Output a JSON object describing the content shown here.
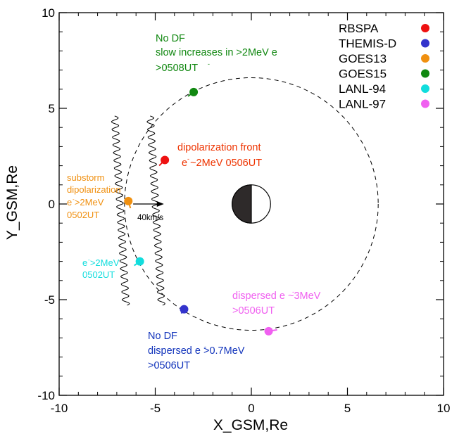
{
  "chart_data": {
    "type": "scatter",
    "xlabel": "X_GSM,Re",
    "ylabel": "Y_GSM,Re",
    "xlim": [
      -10,
      10
    ],
    "ylim": [
      -10,
      10
    ],
    "x_ticks": [
      -10,
      -5,
      0,
      5,
      10
    ],
    "y_ticks": [
      -10,
      -5,
      0,
      5,
      10
    ],
    "x_tick_labels": [
      "-10",
      "-5",
      "0",
      "5",
      "10"
    ],
    "y_tick_labels": [
      "-10",
      "-5",
      "0",
      "5",
      "10"
    ],
    "grid": false,
    "legend_placement": "top-right",
    "series": [
      {
        "name": "RBSPA",
        "color": "#ee1111",
        "x": -4.5,
        "y": 2.3
      },
      {
        "name": "THEMIS-D",
        "color": "#3333cc",
        "x": -3.5,
        "y": -5.5
      },
      {
        "name": "GOES13",
        "color": "#f09010",
        "x": -6.4,
        "y": 0.15
      },
      {
        "name": "GOES15",
        "color": "#118811",
        "x": -3.0,
        "y": 5.85
      },
      {
        "name": "LANL-94",
        "color": "#11dddd",
        "x": -5.8,
        "y": -3.0
      },
      {
        "name": "LANL-97",
        "color": "#f060f0",
        "x": 0.9,
        "y": -6.65
      }
    ],
    "geosync_orbit_radius": 6.6,
    "earth": {
      "x": 0,
      "y": 0,
      "radius": 1,
      "color_dark": "#2e2a2a",
      "color_light": "#ffffff"
    },
    "fronts": [
      {
        "x_center": -6.6,
        "y_range": [
          -5.3,
          4.6
        ]
      },
      {
        "x_center": -4.75,
        "y_range": [
          -5.3,
          4.6
        ]
      }
    ],
    "velocity_arrow": {
      "x_start": -6.15,
      "x_end": -4.55,
      "y": 0.0,
      "label": "40km/s"
    },
    "annotations": [
      {
        "id": "goes15-note",
        "color": "#118811",
        "lines": [
          "No DF",
          "slow increases in >2MeV e",
          ">0508UT"
        ]
      },
      {
        "id": "rbspa-note",
        "color": "#ee3300",
        "lines": [
          "dipolarization front",
          "e ~2MeV 0506UT"
        ]
      },
      {
        "id": "goes13-note",
        "color": "#f09010",
        "lines": [
          "substorm",
          "dipolarization",
          "e >2MeV",
          "0502UT"
        ]
      },
      {
        "id": "lanl94-note",
        "color": "#11dddd",
        "lines": [
          "e >2MeV",
          "0502UT"
        ]
      },
      {
        "id": "lanl97-note",
        "color": "#f060f0",
        "lines": [
          "dispersed e ~3MeV",
          ">0506UT"
        ]
      },
      {
        "id": "themis-note",
        "color": "#1133bb",
        "lines": [
          "No DF",
          "dispersed e >0.7MeV",
          ">0506UT"
        ]
      }
    ]
  }
}
